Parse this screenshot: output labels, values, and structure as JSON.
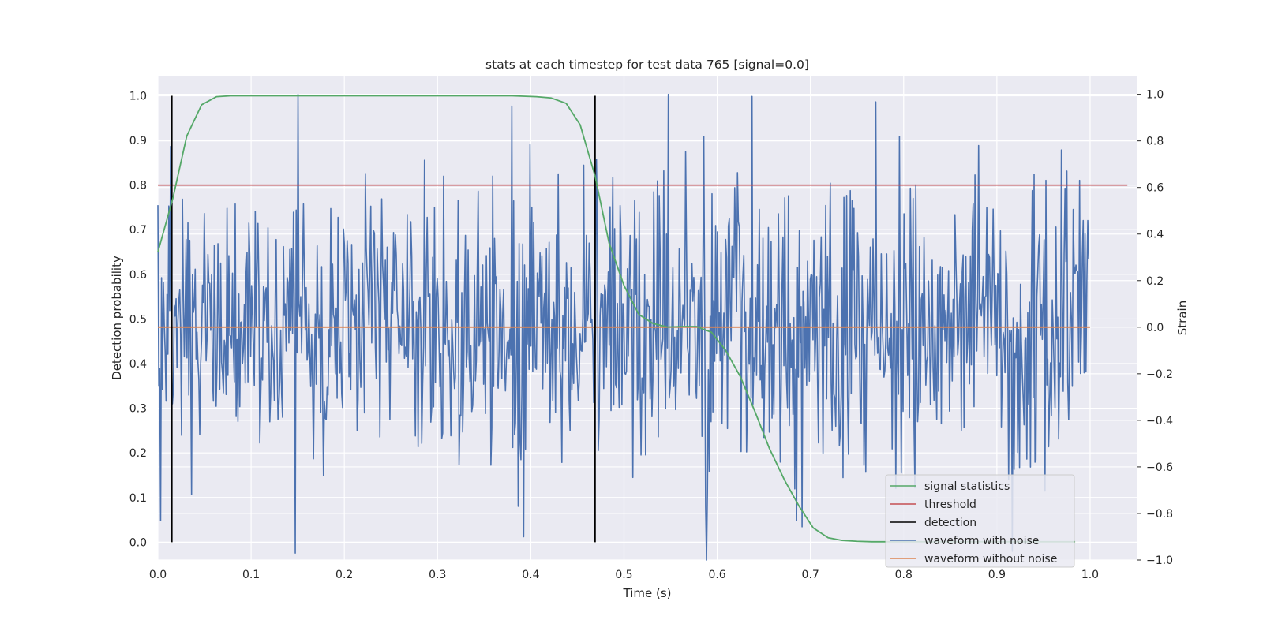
{
  "chart_data": {
    "type": "line",
    "title": "stats at each timestep for test data 765 [signal=0.0]",
    "xlabel": "Time (s)",
    "ylabel": "Detection probability",
    "y2label": "Strain",
    "xlim": [
      0.0,
      1.05
    ],
    "ylim": [
      -0.04,
      1.045
    ],
    "y2lim": [
      -1.0,
      1.08
    ],
    "xticks": [
      "0.0",
      "0.1",
      "0.2",
      "0.3",
      "0.4",
      "0.5",
      "0.6",
      "0.7",
      "0.8",
      "0.9",
      "1.0"
    ],
    "yticks": [
      "0.0",
      "0.1",
      "0.2",
      "0.3",
      "0.4",
      "0.5",
      "0.6",
      "0.7",
      "0.8",
      "0.9",
      "1.0"
    ],
    "y2ticks": [
      "−1.0",
      "−0.8",
      "−0.6",
      "−0.4",
      "−0.2",
      "0.0",
      "0.2",
      "0.4",
      "0.6",
      "0.8",
      "1.0"
    ],
    "grid": true,
    "legend_position": "lower-right",
    "series": [
      {
        "name": "signal statistics",
        "color": "#55a868",
        "axis": "left",
        "x": [
          0.0,
          0.016,
          0.031,
          0.047,
          0.063,
          0.078,
          0.094,
          0.11,
          0.2,
          0.3,
          0.38,
          0.406,
          0.422,
          0.438,
          0.453,
          0.469,
          0.484,
          0.5,
          0.516,
          0.531,
          0.547,
          0.563,
          0.578,
          0.594,
          0.609,
          0.625,
          0.641,
          0.656,
          0.672,
          0.688,
          0.703,
          0.719,
          0.734,
          0.75,
          0.766,
          0.8,
          0.9,
          0.984
        ],
        "y": [
          0.65,
          0.77,
          0.91,
          0.98,
          0.998,
          1.0,
          1.0,
          1.0,
          1.0,
          1.0,
          1.0,
          0.998,
          0.995,
          0.983,
          0.935,
          0.82,
          0.67,
          0.575,
          0.51,
          0.49,
          0.482,
          0.483,
          0.483,
          0.47,
          0.43,
          0.37,
          0.29,
          0.21,
          0.14,
          0.08,
          0.032,
          0.01,
          0.004,
          0.002,
          0.001,
          0.001,
          0.001,
          0.001
        ]
      },
      {
        "name": "threshold",
        "color": "#c44e52",
        "axis": "left",
        "x": [
          0.0,
          1.04
        ],
        "y": [
          0.8,
          0.8
        ]
      },
      {
        "name": "detection",
        "color": "#000000",
        "axis": "left",
        "vlines": [
          0.015,
          0.469
        ],
        "ymin": 0.0,
        "ymax": 1.0
      },
      {
        "name": "waveform with noise",
        "color": "#4c72b0",
        "axis": "right",
        "x_range": [
          0.0,
          0.9985
        ],
        "n_points": 1024,
        "approx_range": [
          -1.0,
          1.0
        ],
        "noise_std": 0.3,
        "notable_points": [
          {
            "x": 0.003,
            "y": -0.83
          },
          {
            "x": 0.147,
            "y": -0.97
          },
          {
            "x": 0.392,
            "y": -0.9
          },
          {
            "x": 0.38,
            "y": 0.95
          },
          {
            "x": 0.548,
            "y": 1.0
          },
          {
            "x": 0.586,
            "y": 0.82
          },
          {
            "x": 0.59,
            "y": -0.7
          },
          {
            "x": 0.685,
            "y": -0.83
          },
          {
            "x": 0.795,
            "y": 0.82
          },
          {
            "x": 0.88,
            "y": 0.78
          }
        ]
      },
      {
        "name": "waveform without noise",
        "color": "#dd8452",
        "axis": "right",
        "x": [
          0.0,
          1.0
        ],
        "y": [
          0.0,
          0.0
        ]
      }
    ]
  }
}
